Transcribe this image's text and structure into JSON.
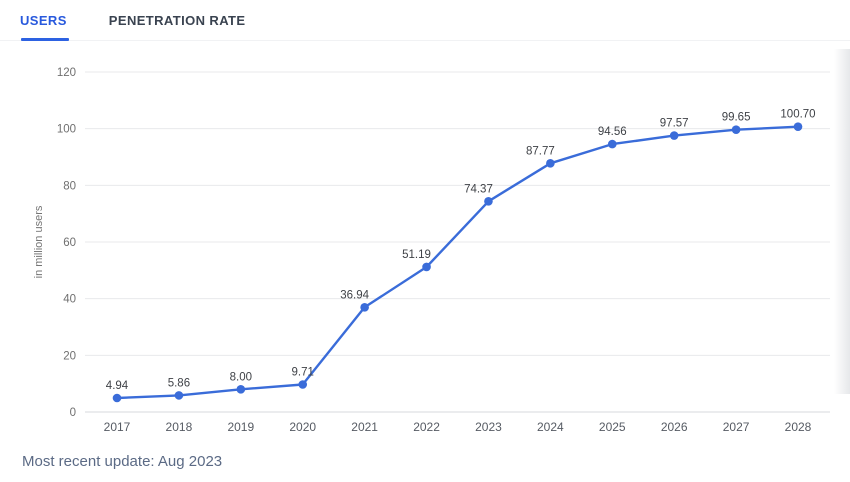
{
  "tabs": [
    {
      "label": "USERS",
      "active": true
    },
    {
      "label": "PENETRATION RATE",
      "active": false
    }
  ],
  "chart_data": {
    "type": "line",
    "categories": [
      "2017",
      "2018",
      "2019",
      "2020",
      "2021",
      "2022",
      "2023",
      "2024",
      "2025",
      "2026",
      "2027",
      "2028"
    ],
    "values": [
      4.94,
      5.86,
      8.0,
      9.71,
      36.94,
      51.19,
      74.37,
      87.77,
      94.56,
      97.57,
      99.65,
      100.7
    ],
    "labels": [
      "4.94",
      "5.86",
      "8.00",
      "9.71",
      "36.94",
      "51.19",
      "74.37",
      "87.77",
      "94.56",
      "97.57",
      "99.65",
      "100.70"
    ],
    "title": "",
    "xlabel": "",
    "ylabel": "in million users",
    "yticks": [
      0,
      20,
      40,
      60,
      80,
      100,
      120
    ],
    "ylim": [
      0,
      120
    ],
    "grid": true,
    "legend": "none",
    "line_color": "#3a6cd9",
    "point_color": "#3a6cd9",
    "grid_color": "#e8e9eb",
    "axis_color": "#d7d9dc",
    "tick_label_color": "#6f6f6f",
    "value_label_color": "#3f4247",
    "x_label_color": "#565b63",
    "ylabel_color": "#757575"
  },
  "footer": {
    "update_text": "Most recent update: Aug 2023"
  }
}
